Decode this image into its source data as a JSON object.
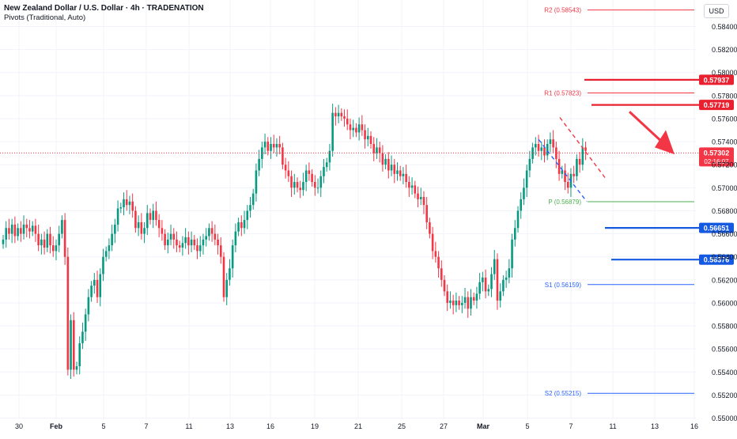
{
  "header": {
    "title": "New Zealand Dollar / U.S. Dollar · 4h · TRADENATION",
    "indicator": "Pivots (Traditional, Auto)",
    "currency_button": "USD"
  },
  "chart_data": {
    "type": "candlestick",
    "price_axis": {
      "ylim": [
        0.5499,
        0.5863
      ],
      "ticks": [
        "0.58400",
        "0.58200",
        "0.58000",
        "0.57800",
        "0.57600",
        "0.57400",
        "0.57200",
        "0.57000",
        "0.56800",
        "0.56600",
        "0.56400",
        "0.56200",
        "0.56000",
        "0.55800",
        "0.55600",
        "0.55400",
        "0.55200",
        "0.55000"
      ],
      "tick_values": [
        0.584,
        0.582,
        0.58,
        0.578,
        0.576,
        0.574,
        0.572,
        0.57,
        0.568,
        0.566,
        0.564,
        0.562,
        0.56,
        0.558,
        0.556,
        0.554,
        0.552,
        0.55
      ]
    },
    "time_axis": {
      "labels": [
        "30",
        "Feb",
        "5",
        "7",
        "11",
        "13",
        "16",
        "19",
        "21",
        "25",
        "27",
        "Mar",
        "5",
        "7",
        "11",
        "13",
        "16"
      ],
      "bold": [
        false,
        true,
        false,
        false,
        false,
        false,
        false,
        false,
        false,
        false,
        false,
        true,
        false,
        false,
        false,
        false,
        false
      ]
    },
    "pivots": [
      {
        "name": "R2",
        "label": "R2 (0.58543)",
        "value": 0.58543,
        "color": "#f23645"
      },
      {
        "name": "R1",
        "label": "R1 (0.57823)",
        "value": 0.57823,
        "color": "#f23645"
      },
      {
        "name": "P",
        "label": "P (0.56879)",
        "value": 0.56879,
        "color": "#4caf50"
      },
      {
        "name": "S1",
        "label": "S1 (0.56159)",
        "value": 0.56159,
        "color": "#2962ff"
      },
      {
        "name": "S2",
        "label": "S2 (0.55215)",
        "value": 0.55215,
        "color": "#2962ff"
      }
    ],
    "resistance_levels": [
      {
        "value": 0.57937,
        "label": "0.57937",
        "color": "#e8202f"
      },
      {
        "value": 0.57719,
        "label": "0.57719",
        "color": "#e8202f"
      }
    ],
    "support_levels": [
      {
        "value": 0.56651,
        "label": "0.56651",
        "color": "#1559e0"
      },
      {
        "value": 0.56376,
        "label": "0.56376",
        "color": "#1559e0"
      }
    ],
    "current_price": {
      "value": 0.57302,
      "label": "0.57302",
      "countdown": "02:16:07",
      "color": "#f23645"
    },
    "colors": {
      "up": "#089981",
      "down": "#f23645",
      "grid": "#f0f3fa"
    },
    "grid": true,
    "candles_close": [
      0.5655,
      0.5665,
      0.566,
      0.5668,
      0.5658,
      0.5665,
      0.566,
      0.5668,
      0.5665,
      0.5662,
      0.5667,
      0.566,
      0.565,
      0.5655,
      0.5648,
      0.566,
      0.565,
      0.5645,
      0.565,
      0.566,
      0.5672,
      0.564,
      0.5542,
      0.5585,
      0.5542,
      0.5545,
      0.5565,
      0.5575,
      0.559,
      0.5605,
      0.5615,
      0.562,
      0.5605,
      0.5625,
      0.564,
      0.5645,
      0.565,
      0.566,
      0.5668,
      0.5682,
      0.5683,
      0.569,
      0.5685,
      0.5688,
      0.568,
      0.5665,
      0.567,
      0.566,
      0.5665,
      0.5678,
      0.5672,
      0.568,
      0.5672,
      0.5665,
      0.566,
      0.565,
      0.5655,
      0.566,
      0.5655,
      0.565,
      0.5648,
      0.5652,
      0.5657,
      0.565,
      0.5655,
      0.565,
      0.5645,
      0.565,
      0.5655,
      0.5658,
      0.5665,
      0.566,
      0.5655,
      0.565,
      0.564,
      0.5605,
      0.562,
      0.563,
      0.565,
      0.5662,
      0.567,
      0.5665,
      0.5672,
      0.568,
      0.5685,
      0.5695,
      0.5715,
      0.5725,
      0.5735,
      0.574,
      0.5732,
      0.5738,
      0.5735,
      0.5738,
      0.5735,
      0.572,
      0.5715,
      0.571,
      0.57,
      0.5705,
      0.57,
      0.5698,
      0.5705,
      0.5715,
      0.5712,
      0.5705,
      0.57,
      0.57,
      0.571,
      0.5718,
      0.5722,
      0.5732,
      0.5765,
      0.5762,
      0.5765,
      0.5762,
      0.576,
      0.5755,
      0.575,
      0.5752,
      0.5748,
      0.5755,
      0.575,
      0.5742,
      0.5745,
      0.5738,
      0.573,
      0.5735,
      0.573,
      0.572,
      0.5725,
      0.5715,
      0.572,
      0.5712,
      0.5715,
      0.571,
      0.5712,
      0.5705,
      0.57,
      0.5702,
      0.5695,
      0.569,
      0.5692,
      0.5685,
      0.567,
      0.566,
      0.5645,
      0.564,
      0.563,
      0.562,
      0.561,
      0.56,
      0.5602,
      0.5598,
      0.5602,
      0.5598,
      0.56,
      0.5605,
      0.5595,
      0.5605,
      0.5602,
      0.5608,
      0.5618,
      0.5622,
      0.561,
      0.5612,
      0.5625,
      0.5638,
      0.5602,
      0.561,
      0.562,
      0.5622,
      0.563,
      0.5655,
      0.5665,
      0.568,
      0.569,
      0.57,
      0.5715,
      0.5725,
      0.5735,
      0.5738,
      0.5732,
      0.5735,
      0.5728,
      0.5738,
      0.5742,
      0.5735,
      0.5725,
      0.5712,
      0.5715,
      0.5705,
      0.57,
      0.5712,
      0.571,
      0.5725,
      0.572,
      0.5735,
      0.5732
    ]
  }
}
